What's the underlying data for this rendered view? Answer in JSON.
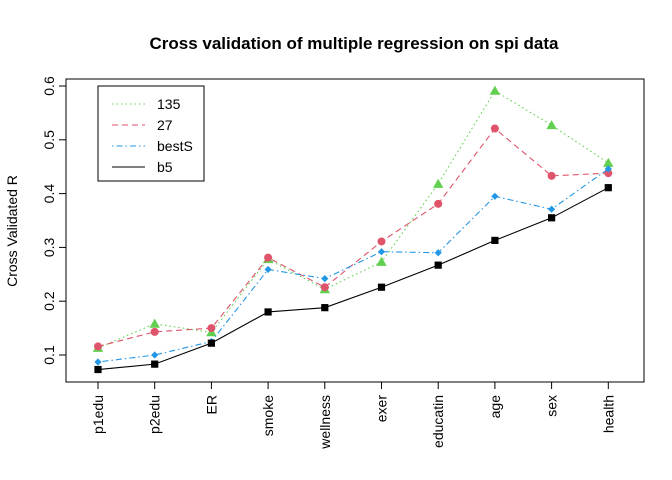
{
  "chart_data": {
    "type": "line",
    "title": "Cross validation of multiple regression on spi data",
    "xlabel": "",
    "ylabel": "Cross Validated R",
    "categories": [
      "p1edu",
      "p2edu",
      "ER",
      "smoke",
      "wellness",
      "exer",
      "educatin",
      "age",
      "sex",
      "health"
    ],
    "ylim": [
      0.05,
      0.6
    ],
    "yticks": [
      0.1,
      0.2,
      0.3,
      0.4,
      0.5,
      0.6
    ],
    "ytick_labels": [
      "0.1",
      "0.2",
      "0.3",
      "0.4",
      "0.5",
      "0.6"
    ],
    "grid": false,
    "legend_position": "top-left",
    "series": [
      {
        "name": "135",
        "color": "#61d04f",
        "line_style": "dotted",
        "marker": "triangle",
        "values": [
          0.113,
          0.158,
          0.142,
          0.278,
          0.222,
          0.273,
          0.418,
          0.591,
          0.527,
          0.457
        ]
      },
      {
        "name": "27",
        "color": "#df536b",
        "line_style": "dashed",
        "marker": "circle",
        "values": [
          0.116,
          0.143,
          0.15,
          0.281,
          0.226,
          0.311,
          0.381,
          0.521,
          0.433,
          0.438
        ]
      },
      {
        "name": "bestS",
        "color": "#2297e6",
        "line_style": "dotdash",
        "marker": "diamond",
        "values": [
          0.087,
          0.1,
          0.125,
          0.259,
          0.242,
          0.292,
          0.29,
          0.395,
          0.371,
          0.446
        ]
      },
      {
        "name": "b5",
        "color": "#000000",
        "line_style": "solid",
        "marker": "square",
        "values": [
          0.073,
          0.083,
          0.122,
          0.18,
          0.188,
          0.226,
          0.267,
          0.313,
          0.355,
          0.411
        ]
      }
    ]
  }
}
